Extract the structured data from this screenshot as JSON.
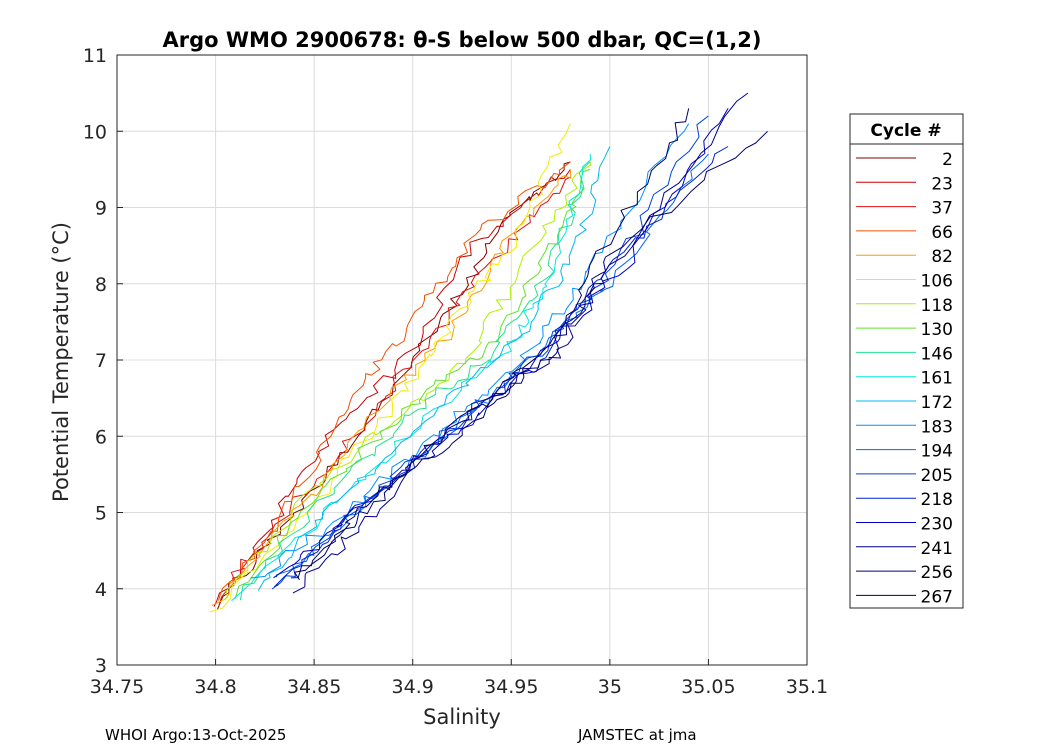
{
  "chart_data": {
    "type": "line",
    "title": "Argo WMO 2900678: θ-S below 500 dbar,  QC=(1,2)",
    "xlabel": "Salinity",
    "ylabel": "Potential Temperature (°C)",
    "xlim": [
      34.75,
      35.1
    ],
    "ylim": [
      3,
      11
    ],
    "xticks": [
      "34.75",
      "34.8",
      "34.85",
      "34.9",
      "34.95",
      "35",
      "35.05",
      "35.1"
    ],
    "yticks": [
      "3",
      "4",
      "5",
      "6",
      "7",
      "8",
      "9",
      "10",
      "11"
    ],
    "grid": true,
    "legend_title": "Cycle #",
    "legend_position": "right-outside",
    "series": [
      {
        "name": "2",
        "color": "#800000",
        "salinity": [
          34.8,
          34.84,
          34.88,
          34.92,
          34.95,
          34.98
        ],
        "theta": [
          3.75,
          5.0,
          6.3,
          7.7,
          8.9,
          9.6
        ]
      },
      {
        "name": "23",
        "color": "#c80000",
        "salinity": [
          34.8,
          34.83,
          34.86,
          34.9,
          34.93,
          34.98
        ],
        "theta": [
          3.78,
          4.9,
          6.1,
          7.1,
          8.5,
          9.5
        ]
      },
      {
        "name": "37",
        "color": "#e01010",
        "salinity": [
          34.8,
          34.83,
          34.87,
          34.91,
          34.94,
          34.98
        ],
        "theta": [
          3.8,
          4.8,
          6.0,
          7.3,
          8.3,
          9.4
        ]
      },
      {
        "name": "66",
        "color": "#f05000",
        "salinity": [
          34.8,
          34.84,
          34.87,
          34.9,
          34.93,
          34.98
        ],
        "theta": [
          3.8,
          5.2,
          6.6,
          7.5,
          8.6,
          9.6
        ]
      },
      {
        "name": "82",
        "color": "#ff9a00",
        "salinity": [
          34.8,
          34.84,
          34.88,
          34.92,
          34.95,
          34.98
        ],
        "theta": [
          3.8,
          5.0,
          6.3,
          7.4,
          8.7,
          9.5
        ]
      },
      {
        "name": "106",
        "color": "#f0ee00",
        "salinity": [
          34.8,
          34.85,
          34.89,
          34.92,
          34.95,
          34.98
        ],
        "theta": [
          3.7,
          5.1,
          6.4,
          7.5,
          8.5,
          10.1
        ]
      },
      {
        "name": "118",
        "color": "#aef000",
        "salinity": [
          34.8,
          34.85,
          34.89,
          34.93,
          34.96,
          34.99
        ],
        "theta": [
          3.8,
          5.3,
          6.2,
          7.1,
          8.4,
          9.6
        ]
      },
      {
        "name": "130",
        "color": "#60e030",
        "salinity": [
          34.81,
          34.85,
          34.9,
          34.94,
          34.97,
          34.99
        ],
        "theta": [
          3.9,
          5.2,
          6.4,
          7.2,
          8.5,
          9.5
        ]
      },
      {
        "name": "146",
        "color": "#20e090",
        "salinity": [
          34.81,
          34.86,
          34.9,
          34.94,
          34.97,
          34.99
        ],
        "theta": [
          3.9,
          5.3,
          6.3,
          7.1,
          8.2,
          9.6
        ]
      },
      {
        "name": "161",
        "color": "#00e8e0",
        "salinity": [
          34.81,
          34.86,
          34.91,
          34.95,
          34.97,
          34.99
        ],
        "theta": [
          3.9,
          5.1,
          6.3,
          7.2,
          8.2,
          9.7
        ]
      },
      {
        "name": "172",
        "color": "#00b8f0",
        "salinity": [
          34.82,
          34.86,
          34.91,
          34.95,
          34.98,
          35.0
        ],
        "theta": [
          4.0,
          5.1,
          6.3,
          7.2,
          8.3,
          9.8
        ]
      },
      {
        "name": "183",
        "color": "#0090ff",
        "salinity": [
          34.82,
          34.87,
          34.92,
          34.96,
          34.99,
          35.04
        ],
        "theta": [
          4.1,
          5.1,
          6.2,
          7.1,
          8.2,
          10.1
        ]
      },
      {
        "name": "194",
        "color": "#0068f8",
        "salinity": [
          34.83,
          34.87,
          34.92,
          34.96,
          35.0,
          35.05
        ],
        "theta": [
          4.1,
          5.0,
          6.1,
          7.0,
          8.0,
          9.7
        ]
      },
      {
        "name": "205",
        "color": "#0040e0",
        "salinity": [
          34.83,
          34.87,
          34.92,
          34.96,
          35.0,
          35.05
        ],
        "theta": [
          4.0,
          5.0,
          6.1,
          7.0,
          8.1,
          10.2
        ]
      },
      {
        "name": "218",
        "color": "#0020d0",
        "salinity": [
          34.83,
          34.87,
          34.92,
          34.96,
          35.0,
          35.06
        ],
        "theta": [
          4.0,
          5.0,
          6.1,
          6.9,
          8.2,
          9.8
        ]
      },
      {
        "name": "230",
        "color": "#0000c0",
        "salinity": [
          34.83,
          34.87,
          34.92,
          34.96,
          35.01,
          35.06
        ],
        "theta": [
          4.1,
          5.0,
          6.0,
          6.9,
          8.3,
          10.3
        ]
      },
      {
        "name": "241",
        "color": "#000090",
        "salinity": [
          34.84,
          34.88,
          34.92,
          34.97,
          35.0,
          35.07
        ],
        "theta": [
          4.0,
          5.0,
          6.2,
          7.0,
          8.2,
          10.5
        ]
      },
      {
        "name": "256",
        "color": "#000070",
        "salinity": [
          34.84,
          34.88,
          34.93,
          34.97,
          35.0,
          35.08
        ],
        "theta": [
          4.1,
          5.1,
          6.2,
          7.1,
          8.4,
          10.0
        ]
      },
      {
        "name": "267",
        "color": "#000060",
        "salinity": [
          34.84,
          34.88,
          34.93,
          34.97,
          35.0,
          35.04
        ],
        "theta": [
          4.1,
          5.2,
          6.3,
          7.2,
          8.6,
          10.3
        ]
      }
    ]
  },
  "footer": {
    "left": "WHOI Argo:13-Oct-2025",
    "right": "JAMSTEC at jma"
  }
}
